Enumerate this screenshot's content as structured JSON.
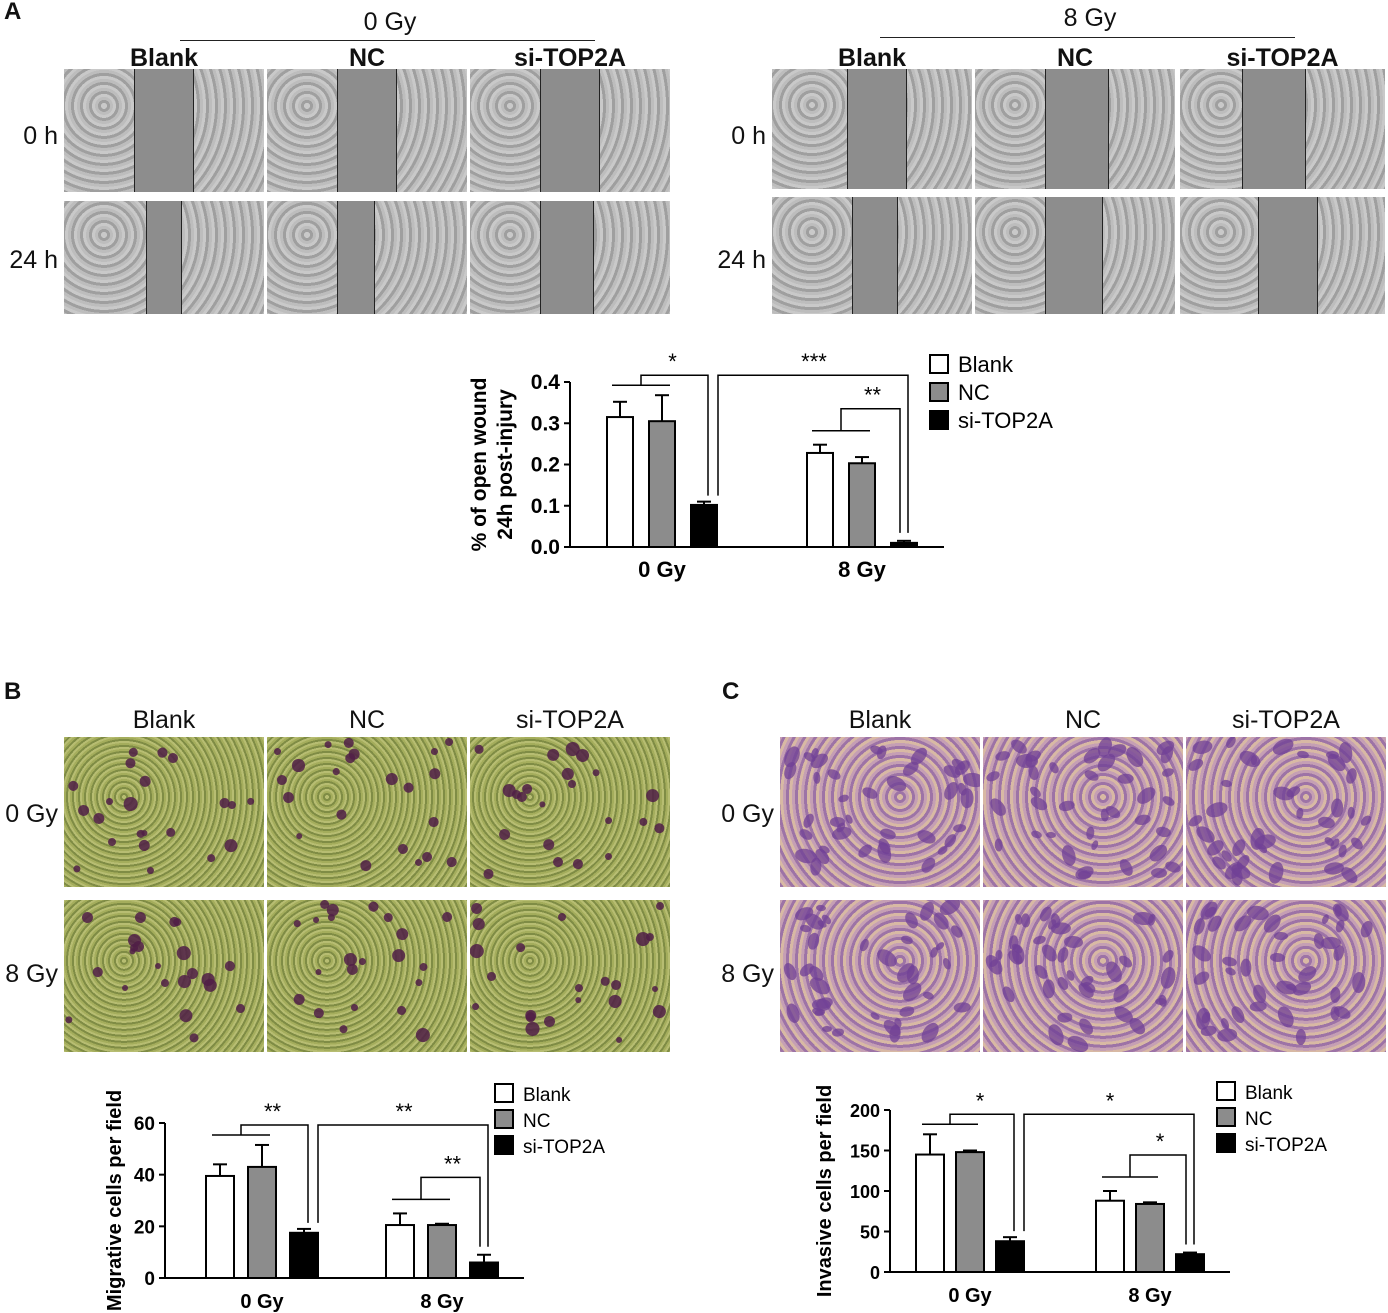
{
  "panels": {
    "A": {
      "letter": "A",
      "group_left": "0 Gy",
      "group_right": "8 Gy",
      "columns": [
        "Blank",
        "NC",
        "si-TOP2A"
      ],
      "rows": [
        "0 h",
        "24 h"
      ]
    },
    "B": {
      "letter": "B",
      "columns": [
        "Blank",
        "NC",
        "si-TOP2A"
      ],
      "rows": [
        "0 Gy",
        "8 Gy"
      ]
    },
    "C": {
      "letter": "C",
      "columns": [
        "Blank",
        "NC",
        "si-TOP2A"
      ],
      "rows": [
        "0 Gy",
        "8 Gy"
      ]
    }
  },
  "colors": {
    "Blank": "#ffffff",
    "NC": "#8c8c8c",
    "si-TOP2A": "#000000"
  },
  "chart_data": [
    {
      "type": "bar",
      "panel": "A",
      "categories": [
        "0 Gy",
        "8 Gy"
      ],
      "series": [
        {
          "name": "Blank",
          "values": [
            0.315,
            0.228
          ],
          "errors": [
            0.037,
            0.02
          ]
        },
        {
          "name": "NC",
          "values": [
            0.305,
            0.203
          ],
          "errors": [
            0.063,
            0.015
          ]
        },
        {
          "name": "si-TOP2A",
          "values": [
            0.102,
            0.01
          ],
          "errors": [
            0.008,
            0.005
          ]
        }
      ],
      "ylabel": [
        "% of open wound",
        "24h post-injury"
      ],
      "ylim": [
        0,
        0.4
      ],
      "yticks": [
        "0.0",
        "0.1",
        "0.2",
        "0.3",
        "0.4"
      ],
      "significance": [
        "*",
        "***",
        "**"
      ]
    },
    {
      "type": "bar",
      "panel": "B",
      "categories": [
        "0 Gy",
        "8 Gy"
      ],
      "series": [
        {
          "name": "Blank",
          "values": [
            39.5,
            20.5
          ],
          "errors": [
            4.5,
            4.5
          ]
        },
        {
          "name": "NC",
          "values": [
            43,
            20.5
          ],
          "errors": [
            8.5,
            0.5
          ]
        },
        {
          "name": "si-TOP2A",
          "values": [
            17.5,
            6
          ],
          "errors": [
            1.5,
            3
          ]
        }
      ],
      "ylabel": [
        "Migrative cells per field"
      ],
      "ylim": [
        0,
        60
      ],
      "yticks": [
        "0",
        "20",
        "40",
        "60"
      ],
      "significance": [
        "**",
        "**",
        "**"
      ]
    },
    {
      "type": "bar",
      "panel": "C",
      "categories": [
        "0 Gy",
        "8 Gy"
      ],
      "series": [
        {
          "name": "Blank",
          "values": [
            145,
            88
          ],
          "errors": [
            25,
            12
          ]
        },
        {
          "name": "NC",
          "values": [
            148,
            84
          ],
          "errors": [
            2,
            2
          ]
        },
        {
          "name": "si-TOP2A",
          "values": [
            38,
            22
          ],
          "errors": [
            5,
            2
          ]
        }
      ],
      "ylabel": [
        "Invasive cells per field"
      ],
      "ylim": [
        0,
        200
      ],
      "yticks": [
        "0",
        "50",
        "100",
        "150",
        "200"
      ],
      "significance": [
        "*",
        "*",
        "*"
      ]
    }
  ]
}
